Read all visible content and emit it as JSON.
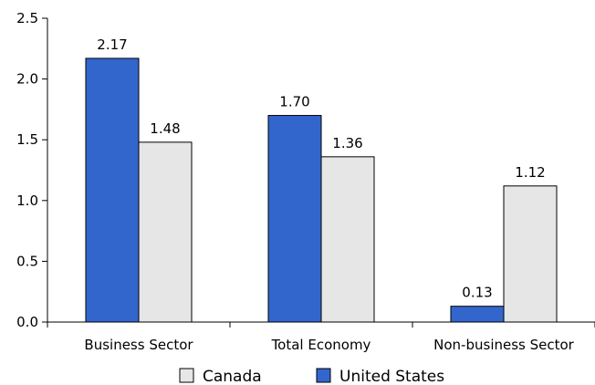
{
  "chart_data": {
    "type": "bar",
    "categories": [
      "Business Sector",
      "Total Economy",
      "Non-business Sector"
    ],
    "series": [
      {
        "name": "United States",
        "values": [
          2.17,
          1.7,
          0.13
        ],
        "color": "#3366CC",
        "data_labels": [
          "2.17",
          "1.70",
          "0.13"
        ]
      },
      {
        "name": "Canada",
        "values": [
          1.48,
          1.36,
          1.12
        ],
        "color": "#E6E6E6",
        "data_labels": [
          "1.48",
          "1.36",
          "1.12"
        ]
      }
    ],
    "title": "",
    "xlabel": "",
    "ylabel": "",
    "ylim": [
      0,
      2.5
    ],
    "yticks": [
      "0.0",
      "0.5",
      "1.0",
      "1.5",
      "2.0",
      "2.5"
    ],
    "grid": false,
    "legend": {
      "placement": "bottom",
      "entries": [
        {
          "name": "Canada",
          "color": "#E6E6E6"
        },
        {
          "name": "United States",
          "color": "#3366CC"
        }
      ]
    }
  }
}
